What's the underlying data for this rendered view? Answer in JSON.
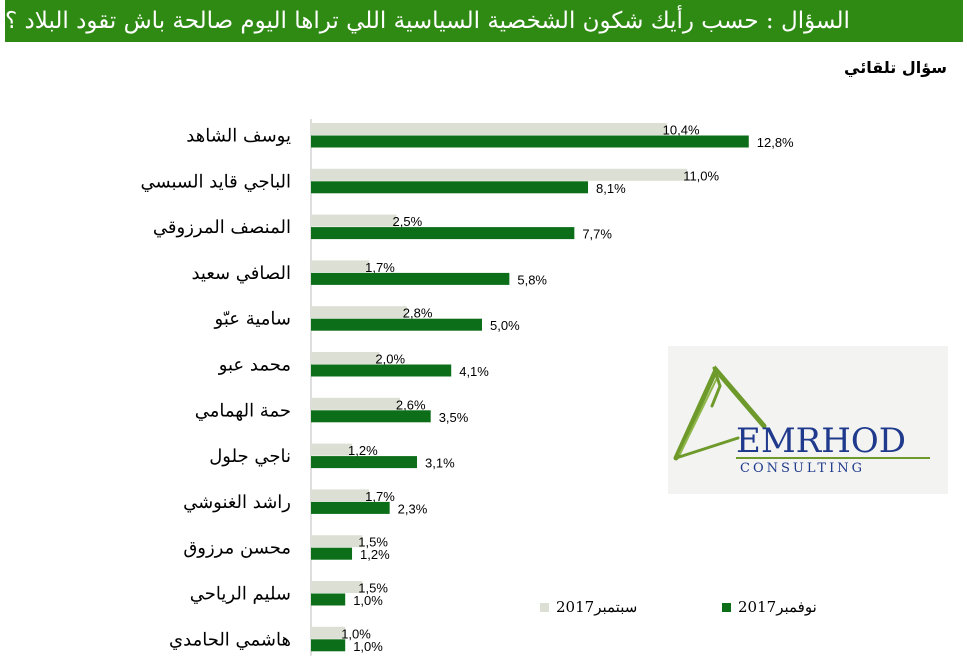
{
  "header": {
    "title": "السؤال :  حسب رأيك شكون الشخصية  السياسية اللي تراها اليوم صالحة باش تقود البلاد ؟",
    "subtitle": "سؤال تلقائي"
  },
  "logo": {
    "name": "EMRHOD",
    "tagline": "CONSULTING"
  },
  "colors": {
    "header_bg": "#2f8a14",
    "series_sep": "#dcdfd3",
    "series_nov": "#0c6e18",
    "logo_green": "#6e9a2c",
    "logo_blue": "#1f3a8c"
  },
  "chart_data": {
    "type": "bar",
    "orientation": "horizontal",
    "categories": [
      "يوسف الشاهد",
      "الباجي قايد السبسي",
      "المنصف المرزوقي",
      "الصافي سعيد",
      "سامية عبّو",
      "محمد عبو",
      "حمة الهمامي",
      "ناجي جلول",
      "راشد الغنوشي",
      "محسن مرزوق",
      "سليم الرياحي",
      "هاشمي الحامدي"
    ],
    "series": [
      {
        "name": "2017سبتمبر",
        "values": [
          10.4,
          11.0,
          2.5,
          1.7,
          2.8,
          2.0,
          2.6,
          1.2,
          1.7,
          1.5,
          1.5,
          1.0
        ],
        "labels": [
          "10,4%",
          "11,0%",
          "2,5%",
          "1,7%",
          "2,8%",
          "2,0%",
          "2,6%",
          "1,2%",
          "1,7%",
          "1,5%",
          "1,5%",
          "1,0%"
        ]
      },
      {
        "name": "2017نوفمبر",
        "values": [
          12.8,
          8.1,
          7.7,
          5.8,
          5.0,
          4.1,
          3.5,
          3.1,
          2.3,
          1.2,
          1.0,
          1.0
        ],
        "labels": [
          "12,8%",
          "8,1%",
          "7,7%",
          "5,8%",
          "5,0%",
          "4,1%",
          "3,5%",
          "3,1%",
          "2,3%",
          "1,2%",
          "1,0%",
          "1,0%"
        ]
      }
    ],
    "xlim": [
      0,
      14
    ],
    "grid": false,
    "legend_position": "bottom-right"
  }
}
